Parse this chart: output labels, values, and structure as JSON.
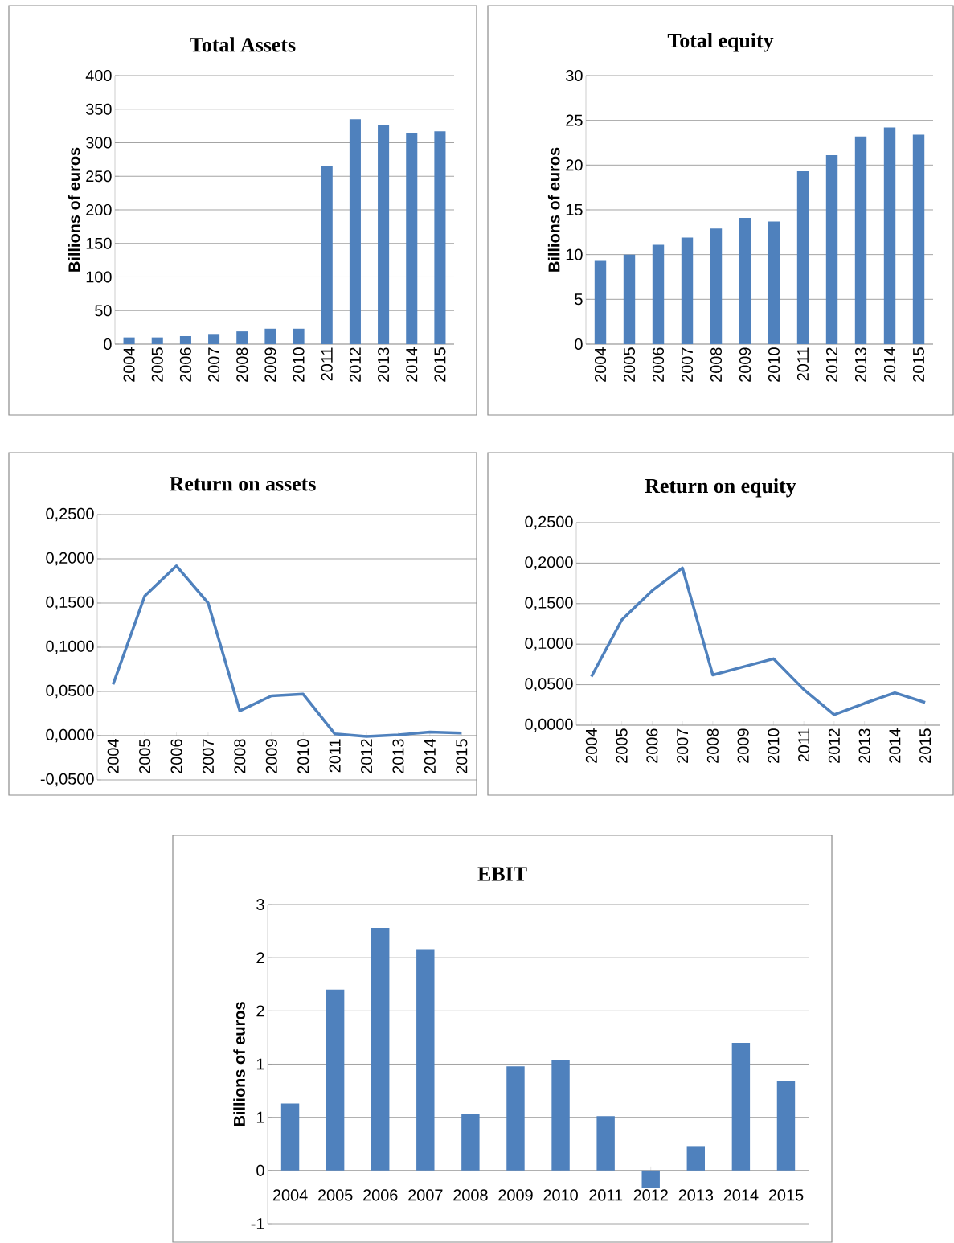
{
  "chart_data": [
    {
      "type": "bar",
      "title": "Total Assets",
      "ylabel": "Billions of euros",
      "categories": [
        "2004",
        "2005",
        "2006",
        "2007",
        "2008",
        "2009",
        "2010",
        "2011",
        "2012",
        "2013",
        "2014",
        "2015"
      ],
      "values": [
        10,
        10,
        12,
        14,
        19,
        23,
        23,
        265,
        335,
        326,
        314,
        317
      ],
      "color": "#4f81bd",
      "ylim": [
        0,
        400
      ],
      "yticks": [
        0,
        50,
        100,
        150,
        200,
        250,
        300,
        350,
        400
      ],
      "grid": "y"
    },
    {
      "type": "bar",
      "title": "Total equity",
      "ylabel": "Billions of euros",
      "categories": [
        "2004",
        "2005",
        "2006",
        "2007",
        "2008",
        "2009",
        "2010",
        "2011",
        "2012",
        "2013",
        "2014",
        "2015"
      ],
      "values": [
        9.3,
        10.0,
        11.1,
        11.9,
        12.9,
        14.1,
        13.7,
        19.3,
        21.1,
        23.2,
        24.2,
        23.4
      ],
      "color": "#4f81bd",
      "ylim": [
        0,
        30
      ],
      "yticks": [
        0,
        5,
        10,
        15,
        20,
        25,
        30
      ],
      "grid": "y"
    },
    {
      "type": "line",
      "title": "Return on assets",
      "categories": [
        "2004",
        "2005",
        "2006",
        "2007",
        "2008",
        "2009",
        "2010",
        "2011",
        "2012",
        "2013",
        "2014",
        "2015"
      ],
      "values": [
        0.058,
        0.158,
        0.192,
        0.15,
        0.028,
        0.045,
        0.047,
        0.002,
        -0.001,
        0.001,
        0.004,
        0.003
      ],
      "color": "#4f81bd",
      "ylim": [
        -0.05,
        0.25
      ],
      "yticks": [
        {
          "value": -0.05,
          "label": "-0,0500"
        },
        {
          "value": 0,
          "label": "0,0000"
        },
        {
          "value": 0.05,
          "label": "0,0500"
        },
        {
          "value": 0.1,
          "label": "0,1000"
        },
        {
          "value": 0.15,
          "label": "0,1500"
        },
        {
          "value": 0.2,
          "label": "0,2000"
        },
        {
          "value": 0.25,
          "label": "0,2500"
        }
      ],
      "grid": "y"
    },
    {
      "type": "line",
      "title": "Return on equity",
      "categories": [
        "2004",
        "2005",
        "2006",
        "2007",
        "2008",
        "2009",
        "2010",
        "2011",
        "2012",
        "2013",
        "2014",
        "2015"
      ],
      "values": [
        0.06,
        0.13,
        0.166,
        0.194,
        0.062,
        0.072,
        0.082,
        0.044,
        0.013,
        0.027,
        0.04,
        0.028
      ],
      "color": "#4f81bd",
      "ylim": [
        0,
        0.25
      ],
      "yticks": [
        {
          "value": 0,
          "label": "0,0000"
        },
        {
          "value": 0.05,
          "label": "0,0500"
        },
        {
          "value": 0.1,
          "label": "0,1000"
        },
        {
          "value": 0.15,
          "label": "0,1500"
        },
        {
          "value": 0.2,
          "label": "0,2000"
        },
        {
          "value": 0.25,
          "label": "0,2500"
        }
      ],
      "grid": "y"
    },
    {
      "type": "bar",
      "title": "EBIT",
      "ylabel": "Billions of euros",
      "categories": [
        "2004",
        "2005",
        "2006",
        "2007",
        "2008",
        "2009",
        "2010",
        "2011",
        "2012",
        "2013",
        "2014",
        "2015"
      ],
      "values": [
        0.63,
        1.7,
        2.28,
        2.08,
        0.53,
        0.98,
        1.04,
        0.51,
        -0.16,
        0.23,
        1.2,
        0.84
      ],
      "color": "#4f81bd",
      "ylim": [
        -0.5,
        2.5
      ],
      "yticks": [
        {
          "value": -0.5,
          "label": "-1"
        },
        {
          "value": 0,
          "label": "0"
        },
        {
          "value": 0.5,
          "label": "1"
        },
        {
          "value": 1,
          "label": "1"
        },
        {
          "value": 1.5,
          "label": "2"
        },
        {
          "value": 2,
          "label": "2"
        },
        {
          "value": 2.5,
          "label": "3"
        }
      ],
      "grid": "y"
    }
  ]
}
